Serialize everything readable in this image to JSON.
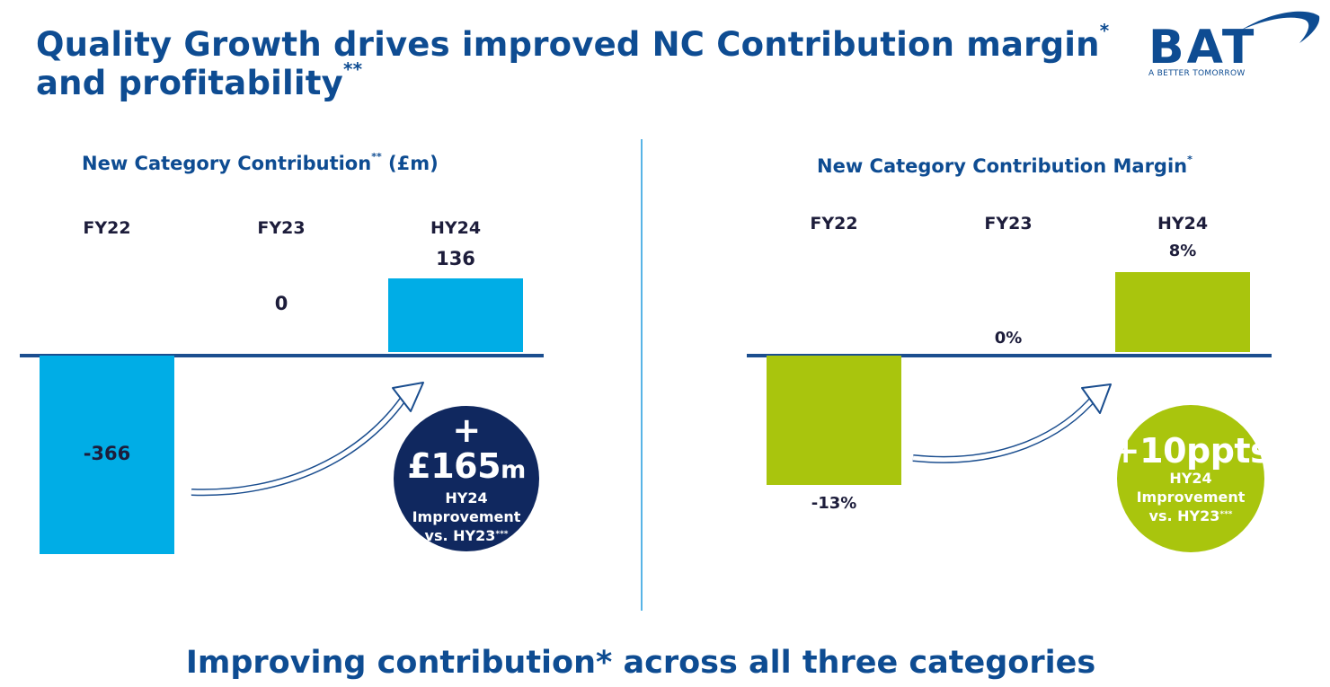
{
  "title": {
    "line1": "Quality Growth drives improved NC Contribution margin",
    "line1_sup": "*",
    "line2": "and profitability",
    "line2_sup": "**"
  },
  "logo": {
    "wordmark": "BAT",
    "tagline": "A BETTER TOMORROW"
  },
  "colors": {
    "navy": "#0e4c92",
    "dark_navy": "#10285f",
    "cyan": "#00ade6",
    "lime": "#a9c50d"
  },
  "left_panel": {
    "title": "New Category Contribution",
    "title_sup": "**",
    "title_suffix": " (£m)",
    "bubble": {
      "value": "+£165",
      "unit": "m",
      "line1": "HY24",
      "line2": "Improvement",
      "line3": "vs. HY23",
      "line3_sup": "***"
    }
  },
  "right_panel": {
    "title": "New Category Contribution Margin",
    "title_sup": "*",
    "bubble": {
      "value": "+10ppts",
      "line1": "HY24",
      "line2": "Improvement",
      "line3": "vs. HY23",
      "line3_sup": "***"
    }
  },
  "chart_data": [
    {
      "type": "bar",
      "title": "New Category Contribution** (£m)",
      "categories": [
        "FY22",
        "FY23",
        "HY24"
      ],
      "values": [
        -366,
        0,
        136
      ],
      "labels": [
        "-366",
        "0",
        "136"
      ],
      "unit": "£m"
    },
    {
      "type": "bar",
      "title": "New Category Contribution Margin*",
      "categories": [
        "FY22",
        "FY23",
        "HY24"
      ],
      "values": [
        -13,
        0,
        8
      ],
      "labels": [
        "-13%",
        "0%",
        "8%"
      ],
      "unit": "%"
    }
  ],
  "footer": "Improving contribution* across all three categories"
}
